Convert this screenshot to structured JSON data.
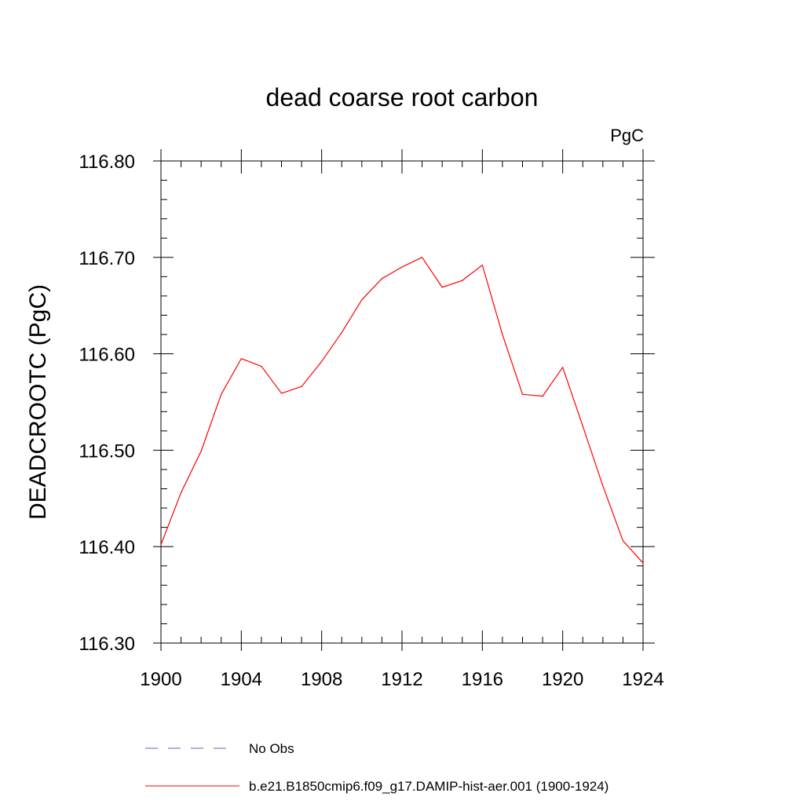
{
  "chart_data": {
    "type": "line",
    "title": "dead coarse root carbon",
    "units_label": "PgC",
    "xlabel": "",
    "ylabel": "DEADCROOTC  (PgC)",
    "xlim": [
      1900,
      1924
    ],
    "ylim": [
      116.3,
      116.8
    ],
    "x_ticks": [
      "1900",
      "1904",
      "1908",
      "1912",
      "1916",
      "1920",
      "1924"
    ],
    "y_ticks": [
      "116.30",
      "116.40",
      "116.50",
      "116.60",
      "116.70",
      "116.80"
    ],
    "grid": false,
    "legend_position": "bottom",
    "series": [
      {
        "name": "b.e21.B1850cmip6.f09_g17.DAMIP-hist-aer.001 (1900-1924)",
        "color": "#ff0000",
        "style": "solid",
        "x": [
          1900,
          1901,
          1902,
          1903,
          1904,
          1905,
          1906,
          1907,
          1908,
          1909,
          1910,
          1911,
          1912,
          1913,
          1914,
          1915,
          1916,
          1917,
          1918,
          1919,
          1920,
          1921,
          1922,
          1923,
          1924
        ],
        "values": [
          116.402,
          116.456,
          116.499,
          116.558,
          116.595,
          116.587,
          116.559,
          116.566,
          116.592,
          116.622,
          116.656,
          116.678,
          116.69,
          116.7,
          116.669,
          116.676,
          116.692,
          116.62,
          116.558,
          116.556,
          116.586,
          116.525,
          116.463,
          116.406,
          116.383
        ]
      }
    ],
    "legend": [
      {
        "name": "No Obs",
        "color": "#6a5acd",
        "style": "dashed"
      },
      {
        "name": "b.e21.B1850cmip6.f09_g17.DAMIP-hist-aer.001 (1900-1924)",
        "color": "#ff0000",
        "style": "solid"
      }
    ]
  }
}
